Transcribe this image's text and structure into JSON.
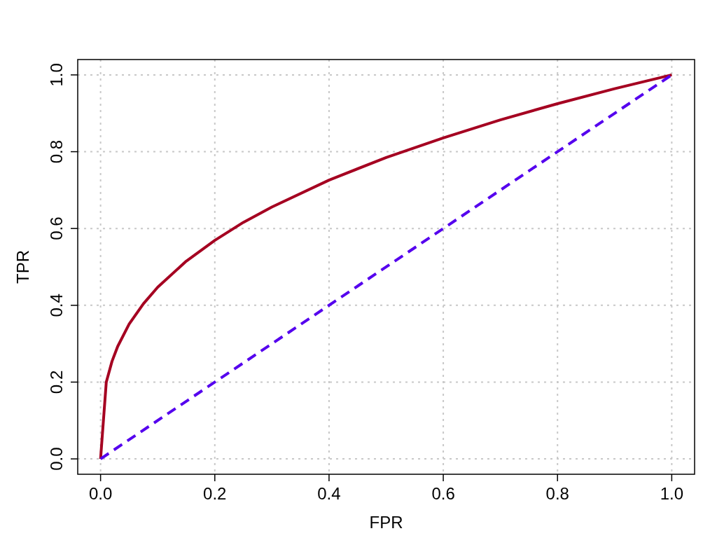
{
  "chart_data": {
    "type": "line",
    "xlabel": "FPR",
    "ylabel": "TPR",
    "xlim": [
      -0.04,
      1.04
    ],
    "ylim": [
      -0.04,
      1.04
    ],
    "xticks": [
      {
        "value": 0,
        "label": "0.0"
      },
      0.2,
      0.4,
      0.6,
      0.8,
      {
        "value": 1,
        "label": "1.0"
      }
    ],
    "yticks": [
      {
        "value": 0,
        "label": "0.0"
      },
      0.2,
      0.4,
      0.6,
      0.8,
      {
        "value": 1,
        "label": "1.0"
      }
    ],
    "grid": true,
    "series": [
      {
        "color": "#a50021",
        "line_style": "solid",
        "x": [
          0,
          0.01,
          0.02,
          0.03,
          0.05,
          0.075,
          0.1,
          0.15,
          0.2,
          0.25,
          0.3,
          0.4,
          0.5,
          0.6,
          0.7,
          0.8,
          0.9,
          1
        ],
        "values": [
          0,
          0.2,
          0.254,
          0.293,
          0.351,
          0.404,
          0.447,
          0.515,
          0.569,
          0.616,
          0.656,
          0.726,
          0.785,
          0.836,
          0.883,
          0.925,
          0.964,
          1
        ]
      },
      {
        "color": "#5500ee",
        "line_style": "dashed",
        "x": [
          0,
          1
        ],
        "values": [
          0,
          1
        ]
      }
    ]
  }
}
